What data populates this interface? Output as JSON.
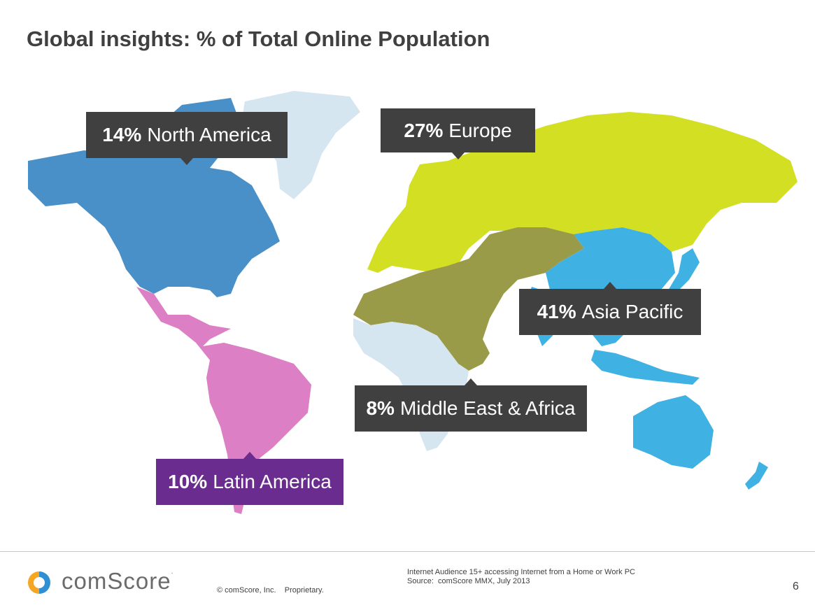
{
  "slide": {
    "title": "Global insights: % of Total Online Population"
  },
  "regions": [
    {
      "id": "north-america",
      "pct": "14%",
      "name": "North America",
      "value": 14,
      "color": "#4a90c8",
      "callout": "#404040"
    },
    {
      "id": "europe",
      "pct": "27%",
      "name": "Europe",
      "value": 27,
      "color": "#d3df22",
      "callout": "#404040"
    },
    {
      "id": "asia-pacific",
      "pct": "41%",
      "name": "Asia Pacific",
      "value": 41,
      "color": "#3fb1e3",
      "callout": "#404040"
    },
    {
      "id": "middle-east-africa",
      "pct": "8%",
      "name": "Middle East & Africa",
      "value": 8,
      "color": "#9a9b48",
      "callout": "#404040"
    },
    {
      "id": "latin-america",
      "pct": "10%",
      "name": "Latin America",
      "value": 10,
      "color": "#dc7fc4",
      "callout": "#6a2c8e"
    }
  ],
  "colors": {
    "other_land": "#d5e6f1",
    "title_text": "#404040",
    "logo_orange": "#f5a623",
    "logo_blue": "#2e8fd2"
  },
  "footer": {
    "brand": "comScore",
    "brand_mark": ".",
    "copyright": "© comScore, Inc.    Proprietary.",
    "source_line1": "Internet Audience 15+ accessing Internet from a Home or Work PC",
    "source_line2": "Source:  comScore MMX, July 2013",
    "page_number": "6"
  }
}
